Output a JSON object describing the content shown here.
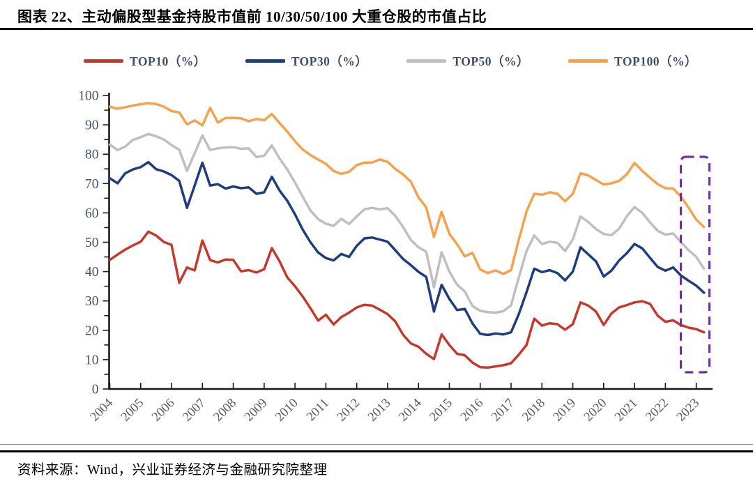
{
  "header": {
    "title": "图表 22、主动偏股型基金持股市值前 10/30/50/100 大重仓股的市值占比"
  },
  "legend": {
    "items": [
      {
        "id": "top10",
        "label": "TOP10（%）",
        "color": "#c33a2c"
      },
      {
        "id": "top30",
        "label": "TOP30（%）",
        "color": "#1e3d7d"
      },
      {
        "id": "top50",
        "label": "TOP50（%）",
        "color": "#bfbfbf"
      },
      {
        "id": "top100",
        "label": "TOP100（%）",
        "color": "#f5a14d"
      }
    ]
  },
  "chart_data": {
    "type": "line",
    "title": "图表 22、主动偏股型基金持股市值前 10/30/50/100 大重仓股的市值占比",
    "x_unit": "quarter",
    "x_start": "2004Q1",
    "x_end": "2023Q2",
    "x_tick_labels": [
      "2004",
      "2005",
      "2006",
      "2007",
      "2008",
      "2009",
      "2010",
      "2011",
      "2012",
      "2013",
      "2014",
      "2015",
      "2016",
      "2017",
      "2018",
      "2019",
      "2020",
      "2021",
      "2022",
      "2023"
    ],
    "ylim": [
      0,
      100
    ],
    "y_tick_step": 10,
    "y_minor_tick_step": 5,
    "grid": false,
    "legend_position": "top",
    "series": [
      {
        "name": "TOP10（%）",
        "color": "#c33a2c",
        "values": [
          44.0,
          45.8,
          47.5,
          48.9,
          50.2,
          53.6,
          52.3,
          50.1,
          49.1,
          36.2,
          41.4,
          40.4,
          50.6,
          43.9,
          43.1,
          44.1,
          44.0,
          40.1,
          40.5,
          39.7,
          40.8,
          48.0,
          43.5,
          38.0,
          35.0,
          31.5,
          27.5,
          23.3,
          25.3,
          22.0,
          24.5,
          26.0,
          27.8,
          28.7,
          28.4,
          27.0,
          25.5,
          23.0,
          18.5,
          15.5,
          14.4,
          12.0,
          10.2,
          18.6,
          15.0,
          12.0,
          11.5,
          9.0,
          7.4,
          7.3,
          7.7,
          8.1,
          8.8,
          11.7,
          15.0,
          24.0,
          21.6,
          22.4,
          22.1,
          20.2,
          22.1,
          29.5,
          28.4,
          26.4,
          21.8,
          25.7,
          27.8,
          28.6,
          29.5,
          29.9,
          29.0,
          25.0,
          22.9,
          23.4,
          21.8,
          20.9,
          20.4,
          19.3
        ]
      },
      {
        "name": "TOP30（%）",
        "color": "#1e3d7d",
        "values": [
          71.8,
          70.1,
          73.5,
          74.8,
          75.6,
          77.3,
          74.9,
          74.1,
          72.9,
          70.9,
          61.7,
          69.3,
          77.1,
          69.3,
          69.8,
          68.3,
          69.0,
          68.4,
          68.7,
          66.5,
          67.0,
          72.3,
          67.6,
          64.1,
          59.5,
          54.3,
          50.0,
          46.5,
          44.6,
          43.8,
          46.0,
          45.0,
          48.8,
          51.3,
          51.6,
          50.9,
          50.2,
          47.3,
          44.3,
          42.2,
          39.9,
          38.2,
          26.4,
          35.5,
          30.7,
          26.9,
          27.3,
          22.3,
          18.8,
          18.4,
          18.9,
          18.6,
          19.3,
          25.5,
          33.0,
          41.0,
          39.8,
          40.5,
          39.5,
          37.0,
          40.0,
          48.3,
          45.9,
          43.5,
          38.3,
          40.3,
          43.8,
          46.3,
          49.4,
          47.9,
          44.7,
          41.6,
          40.3,
          41.4,
          38.7,
          36.9,
          35.2,
          32.8
        ]
      },
      {
        "name": "TOP50（%）",
        "color": "#bfbfbf",
        "values": [
          83.3,
          81.4,
          82.6,
          84.9,
          85.8,
          86.9,
          86.1,
          85.0,
          83.1,
          81.5,
          74.3,
          80.3,
          86.4,
          81.4,
          82.0,
          82.3,
          82.4,
          81.8,
          82.0,
          79.0,
          79.5,
          83.0,
          78.5,
          74.8,
          70.3,
          65.5,
          60.8,
          57.9,
          56.3,
          55.6,
          58.0,
          56.2,
          58.8,
          61.2,
          61.7,
          61.2,
          61.6,
          59.0,
          55.2,
          50.8,
          48.3,
          46.8,
          34.6,
          46.6,
          40.0,
          35.5,
          33.2,
          28.3,
          26.6,
          26.2,
          26.0,
          26.5,
          28.5,
          38.0,
          47.0,
          52.3,
          49.4,
          50.2,
          49.8,
          47.0,
          51.0,
          58.8,
          56.9,
          54.5,
          52.8,
          52.4,
          54.6,
          58.9,
          62.0,
          60.0,
          56.8,
          53.9,
          52.6,
          53.0,
          50.1,
          47.3,
          45.0,
          41.0
        ]
      },
      {
        "name": "TOP100（%）",
        "color": "#f5a14d",
        "values": [
          96.2,
          95.5,
          96.0,
          96.6,
          97.0,
          97.4,
          97.1,
          96.2,
          94.7,
          94.2,
          90.2,
          91.5,
          89.8,
          95.8,
          90.8,
          92.3,
          92.4,
          92.2,
          91.2,
          92.0,
          91.6,
          93.7,
          90.6,
          87.7,
          84.4,
          81.6,
          79.7,
          78.2,
          76.7,
          74.3,
          73.3,
          74.0,
          76.3,
          77.1,
          77.2,
          78.2,
          77.4,
          75.0,
          73.1,
          70.7,
          65.3,
          61.9,
          51.8,
          60.4,
          52.9,
          49.3,
          45.2,
          46.4,
          40.7,
          39.5,
          40.4,
          39.2,
          40.5,
          50.9,
          60.5,
          66.5,
          66.2,
          67.0,
          66.5,
          64.0,
          66.5,
          73.5,
          72.8,
          71.2,
          69.7,
          70.1,
          70.9,
          73.2,
          77.0,
          74.3,
          72.0,
          69.8,
          68.4,
          68.3,
          65.6,
          61.8,
          57.7,
          55.2
        ]
      }
    ],
    "highlight_box": {
      "color": "#7030a0",
      "x_start_quarter_index": 74.0,
      "x_end_quarter_index": 77.7,
      "y_min": 5.7,
      "y_max": 79.1,
      "note": "dashed rectangle highlighting 2022Q4-2023H1 decline"
    }
  },
  "footer": {
    "source": "资料来源：Wind，兴业证券经济与金融研究院整理"
  },
  "colors": {
    "axis": "#1a1a1a",
    "y_label": "#44546a",
    "x_label": "#595959",
    "rule": "#000000"
  }
}
